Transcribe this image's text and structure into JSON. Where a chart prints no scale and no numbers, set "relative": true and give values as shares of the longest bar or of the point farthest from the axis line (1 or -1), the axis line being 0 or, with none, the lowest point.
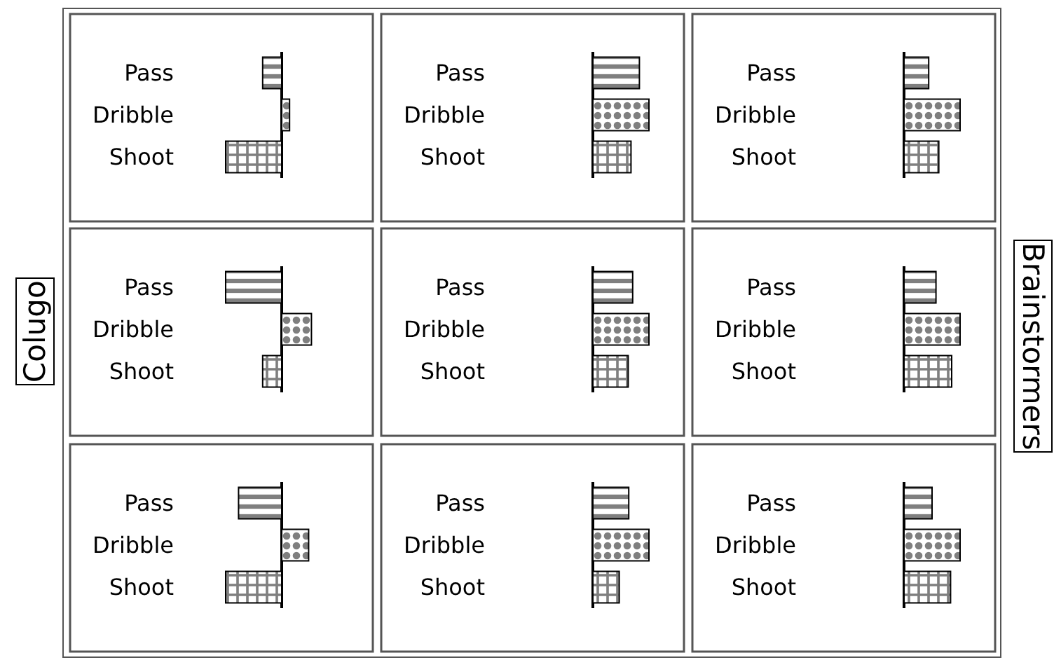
{
  "chart_data": [
    {
      "type": "bar",
      "orientation": "horizontal",
      "relative": true,
      "categories": [
        "Pass",
        "Dribble",
        "Shoot"
      ],
      "values": [
        -0.34,
        0.14,
        -1
      ],
      "color": "#000000"
    },
    {
      "type": "bar",
      "orientation": "horizontal",
      "relative": true,
      "categories": [
        "Pass",
        "Dribble",
        "Shoot"
      ],
      "values": [
        0.83,
        1,
        0.68
      ],
      "color": "#000000"
    },
    {
      "type": "bar",
      "orientation": "horizontal",
      "relative": true,
      "categories": [
        "Pass",
        "Dribble",
        "Shoot"
      ],
      "values": [
        0.44,
        1,
        0.62
      ],
      "color": "#000000"
    },
    {
      "type": "bar",
      "orientation": "horizontal",
      "relative": true,
      "categories": [
        "Pass",
        "Dribble",
        "Shoot"
      ],
      "values": [
        -1,
        0.53,
        -0.34
      ],
      "color": "#000000",
      "ylabel": "Colugo"
    },
    {
      "type": "bar",
      "orientation": "horizontal",
      "relative": true,
      "categories": [
        "Pass",
        "Dribble",
        "Shoot"
      ],
      "values": [
        0.71,
        1,
        0.63
      ],
      "color": "#000000"
    },
    {
      "type": "bar",
      "orientation": "horizontal",
      "relative": true,
      "categories": [
        "Pass",
        "Dribble",
        "Shoot"
      ],
      "values": [
        0.57,
        1,
        0.85
      ],
      "color": "#000000",
      "y2label": "Brainstormers"
    },
    {
      "type": "bar",
      "orientation": "horizontal",
      "relative": true,
      "categories": [
        "Pass",
        "Dribble",
        "Shoot"
      ],
      "values": [
        -0.77,
        0.48,
        -1
      ],
      "color": "#000000"
    },
    {
      "type": "bar",
      "orientation": "horizontal",
      "relative": true,
      "categories": [
        "Pass",
        "Dribble",
        "Shoot"
      ],
      "values": [
        0.64,
        1,
        0.47
      ],
      "color": "#000000"
    },
    {
      "type": "bar",
      "orientation": "horizontal",
      "relative": true,
      "categories": [
        "Pass",
        "Dribble",
        "Shoot"
      ],
      "values": [
        0.5,
        1,
        0.83
      ],
      "color": "#000000"
    }
  ]
}
